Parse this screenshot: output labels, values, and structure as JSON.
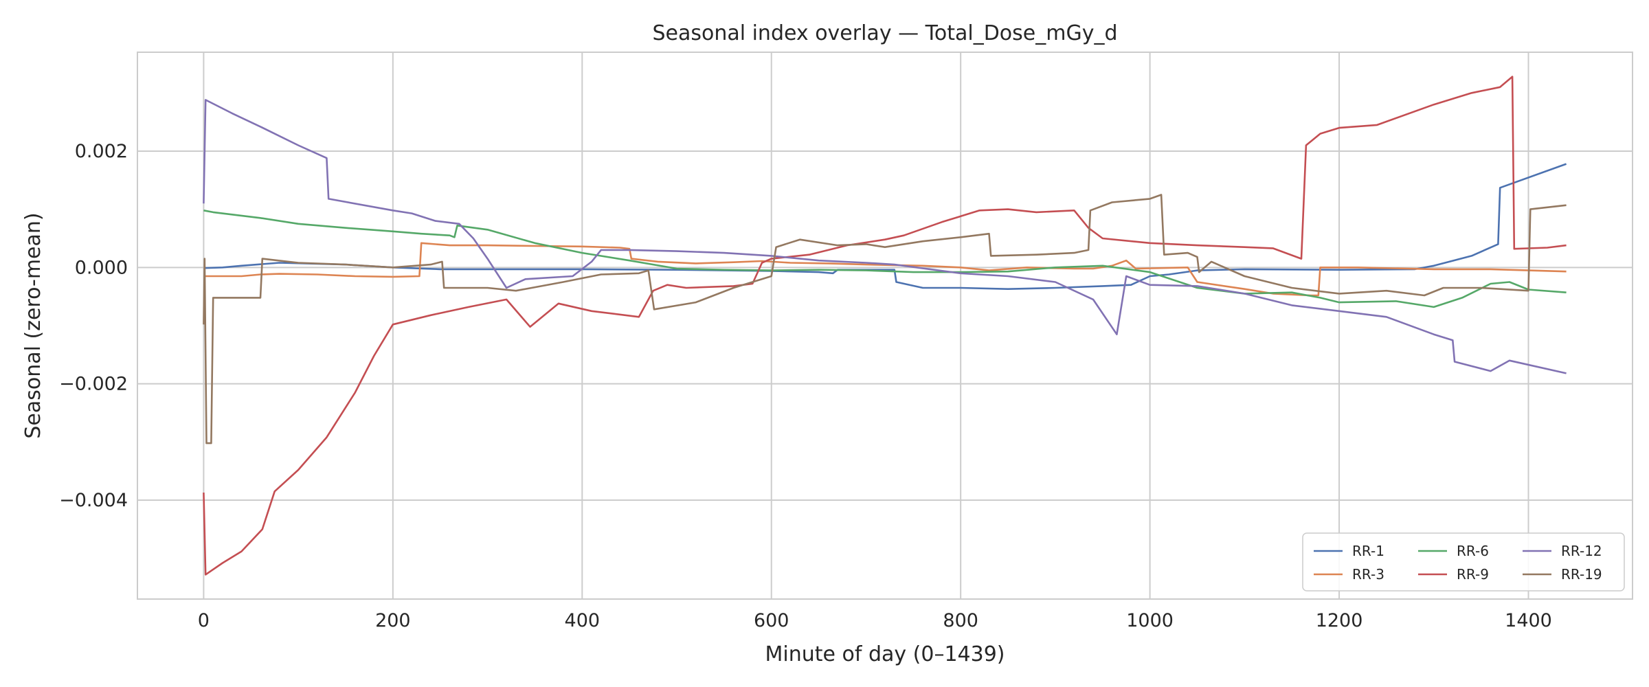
{
  "chart_data": {
    "type": "line",
    "title": "Seasonal index overlay — Total_Dose_mGy_d",
    "xlabel": "Minute of day (0–1439)",
    "ylabel": "Seasonal (zero-mean)",
    "xlim": [
      -70,
      1510
    ],
    "ylim": [
      -0.0057,
      0.0037
    ],
    "xticks": [
      0,
      200,
      400,
      600,
      800,
      1000,
      1200,
      1400
    ],
    "xtick_labels": [
      "0",
      "200",
      "400",
      "600",
      "800",
      "1000",
      "1200",
      "1400"
    ],
    "yticks": [
      -0.004,
      -0.002,
      0.0,
      0.002
    ],
    "ytick_labels": [
      "−0.004",
      "−0.002",
      "0.000",
      "0.002"
    ],
    "grid": true,
    "legend": {
      "location": "lower-right",
      "columns": 3
    },
    "series": [
      {
        "name": "RR-1",
        "color": "#4c72b0",
        "points": [
          [
            0,
            -1e-05
          ],
          [
            20,
            0.0
          ],
          [
            40,
            3e-05
          ],
          [
            80,
            8e-05
          ],
          [
            150,
            5e-05
          ],
          [
            200,
            0.0
          ],
          [
            250,
            -3e-05
          ],
          [
            330,
            -3e-05
          ],
          [
            400,
            -3e-05
          ],
          [
            500,
            -4e-05
          ],
          [
            550,
            -5e-05
          ],
          [
            600,
            -6e-05
          ],
          [
            650,
            -8e-05
          ],
          [
            665,
            -0.0001
          ],
          [
            670,
            -4e-05
          ],
          [
            730,
            -4e-05
          ],
          [
            732,
            -0.00025
          ],
          [
            760,
            -0.00035
          ],
          [
            800,
            -0.00035
          ],
          [
            850,
            -0.00037
          ],
          [
            900,
            -0.00035
          ],
          [
            950,
            -0.00032
          ],
          [
            980,
            -0.0003
          ],
          [
            1000,
            -0.00015
          ],
          [
            1020,
            -0.00012
          ],
          [
            1050,
            -5e-05
          ],
          [
            1100,
            -3e-05
          ],
          [
            1200,
            -4e-05
          ],
          [
            1280,
            -3e-05
          ],
          [
            1300,
            3e-05
          ],
          [
            1340,
            0.0002
          ],
          [
            1368,
            0.0004
          ],
          [
            1370,
            0.00137
          ],
          [
            1440,
            0.00178
          ]
        ]
      },
      {
        "name": "RR-3",
        "color": "#dd8452",
        "points": [
          [
            0,
            -0.00015
          ],
          [
            40,
            -0.00015
          ],
          [
            60,
            -0.00012
          ],
          [
            80,
            -0.00011
          ],
          [
            120,
            -0.00012
          ],
          [
            160,
            -0.00015
          ],
          [
            200,
            -0.00016
          ],
          [
            228,
            -0.00015
          ],
          [
            230,
            0.00042
          ],
          [
            260,
            0.00038
          ],
          [
            300,
            0.00038
          ],
          [
            350,
            0.00037
          ],
          [
            400,
            0.00036
          ],
          [
            440,
            0.00034
          ],
          [
            450,
            0.00032
          ],
          [
            452,
            0.00015
          ],
          [
            480,
            0.0001
          ],
          [
            520,
            7e-05
          ],
          [
            560,
            9e-05
          ],
          [
            590,
            0.00011
          ],
          [
            620,
            8e-05
          ],
          [
            660,
            7e-05
          ],
          [
            700,
            5e-05
          ],
          [
            760,
            3e-05
          ],
          [
            800,
            0.0
          ],
          [
            830,
            -5e-05
          ],
          [
            870,
            0.0
          ],
          [
            920,
            -2e-05
          ],
          [
            940,
            -2e-05
          ],
          [
            960,
            3e-05
          ],
          [
            975,
            0.00012
          ],
          [
            985,
            -2e-05
          ],
          [
            1040,
            0.0
          ],
          [
            1050,
            -0.00025
          ],
          [
            1100,
            -0.00037
          ],
          [
            1130,
            -0.00045
          ],
          [
            1170,
            -0.00048
          ],
          [
            1178,
            -0.00048
          ],
          [
            1180,
            0.0
          ],
          [
            1220,
            0.0
          ],
          [
            1300,
            -3e-05
          ],
          [
            1360,
            -3e-05
          ],
          [
            1440,
            -7e-05
          ]
        ]
      },
      {
        "name": "RR-6",
        "color": "#55a868",
        "points": [
          [
            0,
            0.00098
          ],
          [
            10,
            0.00095
          ],
          [
            60,
            0.00085
          ],
          [
            100,
            0.00075
          ],
          [
            150,
            0.00068
          ],
          [
            200,
            0.00062
          ],
          [
            230,
            0.00058
          ],
          [
            260,
            0.00055
          ],
          [
            265,
            0.00052
          ],
          [
            268,
            0.00072
          ],
          [
            300,
            0.00065
          ],
          [
            350,
            0.00042
          ],
          [
            400,
            0.00025
          ],
          [
            450,
            0.00012
          ],
          [
            500,
            -2e-05
          ],
          [
            550,
            -4e-05
          ],
          [
            600,
            -5e-05
          ],
          [
            650,
            -4e-05
          ],
          [
            700,
            -5e-05
          ],
          [
            750,
            -8e-05
          ],
          [
            800,
            -8e-05
          ],
          [
            850,
            -7e-05
          ],
          [
            900,
            0.0
          ],
          [
            950,
            3e-05
          ],
          [
            1000,
            -8e-05
          ],
          [
            1050,
            -0.00035
          ],
          [
            1100,
            -0.00045
          ],
          [
            1150,
            -0.00043
          ],
          [
            1180,
            -0.00052
          ],
          [
            1200,
            -0.0006
          ],
          [
            1260,
            -0.00058
          ],
          [
            1300,
            -0.00068
          ],
          [
            1330,
            -0.00052
          ],
          [
            1360,
            -0.00028
          ],
          [
            1380,
            -0.00025
          ],
          [
            1400,
            -0.00038
          ],
          [
            1440,
            -0.00043
          ]
        ]
      },
      {
        "name": "RR-9",
        "color": "#c44e52",
        "points": [
          [
            0,
            -0.00387
          ],
          [
            2,
            -0.00528
          ],
          [
            20,
            -0.00508
          ],
          [
            40,
            -0.00488
          ],
          [
            62,
            -0.0045
          ],
          [
            75,
            -0.00385
          ],
          [
            100,
            -0.00348
          ],
          [
            130,
            -0.00292
          ],
          [
            160,
            -0.00215
          ],
          [
            180,
            -0.00152
          ],
          [
            200,
            -0.00098
          ],
          [
            240,
            -0.00082
          ],
          [
            280,
            -0.00068
          ],
          [
            320,
            -0.00055
          ],
          [
            345,
            -0.00102
          ],
          [
            375,
            -0.00062
          ],
          [
            410,
            -0.00075
          ],
          [
            460,
            -0.00085
          ],
          [
            475,
            -0.0004
          ],
          [
            490,
            -0.0003
          ],
          [
            510,
            -0.00035
          ],
          [
            560,
            -0.00032
          ],
          [
            580,
            -0.00028
          ],
          [
            590,
            8e-05
          ],
          [
            600,
            0.00015
          ],
          [
            640,
            0.00022
          ],
          [
            680,
            0.00038
          ],
          [
            720,
            0.00048
          ],
          [
            740,
            0.00055
          ],
          [
            780,
            0.00078
          ],
          [
            820,
            0.00098
          ],
          [
            850,
            0.001
          ],
          [
            880,
            0.00095
          ],
          [
            920,
            0.00098
          ],
          [
            935,
            0.00068
          ],
          [
            950,
            0.0005
          ],
          [
            1000,
            0.00042
          ],
          [
            1050,
            0.00038
          ],
          [
            1100,
            0.00035
          ],
          [
            1130,
            0.00033
          ],
          [
            1160,
            0.00015
          ],
          [
            1165,
            0.0021
          ],
          [
            1180,
            0.0023
          ],
          [
            1200,
            0.0024
          ],
          [
            1240,
            0.00245
          ],
          [
            1300,
            0.0028
          ],
          [
            1340,
            0.003
          ],
          [
            1370,
            0.0031
          ],
          [
            1383,
            0.00328
          ],
          [
            1385,
            0.00032
          ],
          [
            1420,
            0.00034
          ],
          [
            1440,
            0.00038
          ]
        ]
      },
      {
        "name": "RR-12",
        "color": "#8172b3",
        "points": [
          [
            0,
            0.0011
          ],
          [
            2,
            0.00288
          ],
          [
            30,
            0.00265
          ],
          [
            60,
            0.00242
          ],
          [
            100,
            0.0021
          ],
          [
            130,
            0.00188
          ],
          [
            132,
            0.00118
          ],
          [
            200,
            0.00098
          ],
          [
            220,
            0.00093
          ],
          [
            245,
            0.0008
          ],
          [
            270,
            0.00075
          ],
          [
            285,
            0.0005
          ],
          [
            300,
            0.00015
          ],
          [
            320,
            -0.00035
          ],
          [
            340,
            -0.0002
          ],
          [
            390,
            -0.00015
          ],
          [
            410,
            0.0001
          ],
          [
            420,
            0.0003
          ],
          [
            450,
            0.0003
          ],
          [
            500,
            0.00028
          ],
          [
            550,
            0.00025
          ],
          [
            600,
            0.0002
          ],
          [
            650,
            0.00012
          ],
          [
            700,
            8e-05
          ],
          [
            730,
            5e-05
          ],
          [
            800,
            -0.0001
          ],
          [
            850,
            -0.00015
          ],
          [
            900,
            -0.00025
          ],
          [
            940,
            -0.00055
          ],
          [
            965,
            -0.00115
          ],
          [
            975,
            -0.00015
          ],
          [
            1000,
            -0.0003
          ],
          [
            1050,
            -0.00032
          ],
          [
            1100,
            -0.00045
          ],
          [
            1150,
            -0.00065
          ],
          [
            1200,
            -0.00075
          ],
          [
            1250,
            -0.00085
          ],
          [
            1300,
            -0.00115
          ],
          [
            1320,
            -0.00125
          ],
          [
            1322,
            -0.00162
          ],
          [
            1360,
            -0.00178
          ],
          [
            1380,
            -0.0016
          ],
          [
            1440,
            -0.00182
          ]
        ]
      },
      {
        "name": "RR-19",
        "color": "#937860",
        "points": [
          [
            0,
            -0.00098
          ],
          [
            1,
            0.00015
          ],
          [
            3,
            -0.00302
          ],
          [
            8,
            -0.00302
          ],
          [
            10,
            -0.00052
          ],
          [
            60,
            -0.00052
          ],
          [
            62,
            0.00015
          ],
          [
            100,
            8e-05
          ],
          [
            150,
            5e-05
          ],
          [
            200,
            0.0
          ],
          [
            240,
            5e-05
          ],
          [
            252,
            0.0001
          ],
          [
            254,
            -0.00035
          ],
          [
            300,
            -0.00035
          ],
          [
            330,
            -0.0004
          ],
          [
            380,
            -0.00025
          ],
          [
            420,
            -0.00012
          ],
          [
            460,
            -0.0001
          ],
          [
            470,
            -5e-05
          ],
          [
            476,
            -0.00072
          ],
          [
            520,
            -0.0006
          ],
          [
            560,
            -0.00035
          ],
          [
            580,
            -0.00025
          ],
          [
            600,
            -0.00015
          ],
          [
            605,
            0.00035
          ],
          [
            630,
            0.00048
          ],
          [
            670,
            0.00038
          ],
          [
            700,
            0.0004
          ],
          [
            720,
            0.00035
          ],
          [
            760,
            0.00045
          ],
          [
            800,
            0.00052
          ],
          [
            830,
            0.00058
          ],
          [
            832,
            0.0002
          ],
          [
            880,
            0.00022
          ],
          [
            920,
            0.00025
          ],
          [
            935,
            0.0003
          ],
          [
            937,
            0.00098
          ],
          [
            960,
            0.00112
          ],
          [
            1000,
            0.00118
          ],
          [
            1012,
            0.00125
          ],
          [
            1015,
            0.00022
          ],
          [
            1040,
            0.00025
          ],
          [
            1050,
            0.00018
          ],
          [
            1052,
            -8e-05
          ],
          [
            1065,
            0.0001
          ],
          [
            1100,
            -0.00015
          ],
          [
            1150,
            -0.00035
          ],
          [
            1200,
            -0.00045
          ],
          [
            1250,
            -0.0004
          ],
          [
            1290,
            -0.00048
          ],
          [
            1310,
            -0.00035
          ],
          [
            1350,
            -0.00035
          ],
          [
            1400,
            -0.0004
          ],
          [
            1402,
            0.001
          ],
          [
            1440,
            0.00107
          ]
        ]
      }
    ]
  }
}
